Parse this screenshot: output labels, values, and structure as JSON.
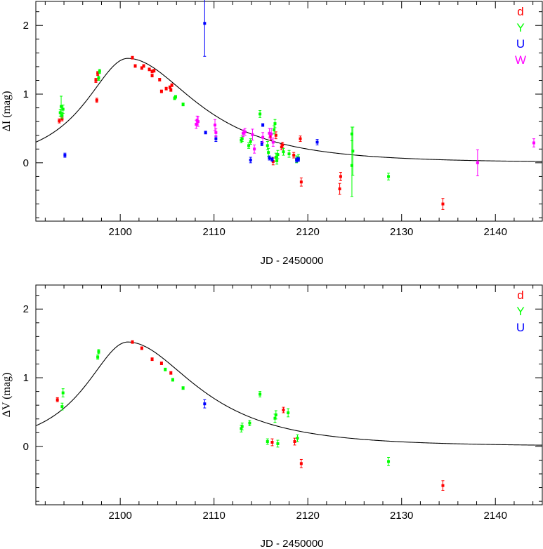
{
  "chart_data": [
    {
      "type": "scatter",
      "title": "",
      "xlabel": "JD - 2450000",
      "ylabel": "ΔI (mag)",
      "xlim": [
        2091,
        2145
      ],
      "ylim": [
        -0.85,
        2.35
      ],
      "xticks": [
        2100,
        2110,
        2120,
        2130,
        2140
      ],
      "yticks": [
        0,
        1,
        2
      ],
      "grid": false,
      "legend_position": "top-right",
      "model_curve": {
        "peak_x": 2100.8,
        "peak_y": 1.52,
        "base": 0.0,
        "u0": 0.65,
        "tE": 12.5,
        "asym_left": 1.5
      },
      "series": [
        {
          "name": "d",
          "color": "#ff0000",
          "points": [
            {
              "x": 2093.5,
              "y": 0.61,
              "err": 0.03
            },
            {
              "x": 2093.8,
              "y": 0.64,
              "err": 0.03
            },
            {
              "x": 2097.4,
              "y": 1.2,
              "err": 0.03
            },
            {
              "x": 2097.6,
              "y": 1.3,
              "err": 0.03
            },
            {
              "x": 2097.5,
              "y": 0.91,
              "err": 0.03
            },
            {
              "x": 2101.3,
              "y": 1.53,
              "err": 0.02
            },
            {
              "x": 2101.6,
              "y": 1.41,
              "err": 0.02
            },
            {
              "x": 2102.3,
              "y": 1.38,
              "err": 0.02
            },
            {
              "x": 2102.5,
              "y": 1.41,
              "err": 0.02
            },
            {
              "x": 2103.1,
              "y": 1.36,
              "err": 0.02
            },
            {
              "x": 2103.4,
              "y": 1.33,
              "err": 0.02
            },
            {
              "x": 2103.6,
              "y": 1.34,
              "err": 0.02
            },
            {
              "x": 2103.4,
              "y": 1.27,
              "err": 0.02
            },
            {
              "x": 2104.2,
              "y": 1.21,
              "err": 0.02
            },
            {
              "x": 2104.4,
              "y": 1.04,
              "err": 0.02
            },
            {
              "x": 2104.9,
              "y": 1.08,
              "err": 0.02
            },
            {
              "x": 2105.3,
              "y": 1.1,
              "err": 0.02
            },
            {
              "x": 2105.4,
              "y": 1.06,
              "err": 0.02
            },
            {
              "x": 2105.5,
              "y": 1.13,
              "err": 0.02
            },
            {
              "x": 2116.0,
              "y": 0.38,
              "err": 0.05
            },
            {
              "x": 2116.3,
              "y": 0.02,
              "err": 0.05
            },
            {
              "x": 2116.6,
              "y": 0.4,
              "err": 0.05
            },
            {
              "x": 2117.2,
              "y": 0.23,
              "err": 0.04
            },
            {
              "x": 2117.3,
              "y": 0.26,
              "err": 0.04
            },
            {
              "x": 2118.5,
              "y": 0.11,
              "err": 0.04
            },
            {
              "x": 2119.2,
              "y": 0.35,
              "err": 0.04
            },
            {
              "x": 2119.3,
              "y": -0.28,
              "err": 0.06
            },
            {
              "x": 2123.4,
              "y": -0.38,
              "err": 0.08
            },
            {
              "x": 2123.5,
              "y": -0.2,
              "err": 0.06
            },
            {
              "x": 2134.4,
              "y": -0.6,
              "err": 0.08
            }
          ]
        },
        {
          "name": "Y",
          "color": "#00ff00",
          "points": [
            {
              "x": 2093.6,
              "y": 0.73,
              "err": 0.05
            },
            {
              "x": 2093.7,
              "y": 0.82,
              "err": 0.15
            },
            {
              "x": 2093.9,
              "y": 0.78,
              "err": 0.06
            },
            {
              "x": 2093.8,
              "y": 0.69,
              "err": 0.04
            },
            {
              "x": 2097.7,
              "y": 1.23,
              "err": 0.03
            },
            {
              "x": 2097.8,
              "y": 1.33,
              "err": 0.03
            },
            {
              "x": 2105.8,
              "y": 0.94,
              "err": 0.02
            },
            {
              "x": 2105.9,
              "y": 0.96,
              "err": 0.02
            },
            {
              "x": 2106.7,
              "y": 0.85,
              "err": 0.02
            },
            {
              "x": 2112.9,
              "y": 0.33,
              "err": 0.04
            },
            {
              "x": 2113.0,
              "y": 0.35,
              "err": 0.04
            },
            {
              "x": 2113.7,
              "y": 0.25,
              "err": 0.04
            },
            {
              "x": 2113.9,
              "y": 0.31,
              "err": 0.04
            },
            {
              "x": 2114.9,
              "y": 0.71,
              "err": 0.05
            },
            {
              "x": 2115.7,
              "y": 0.25,
              "err": 0.06
            },
            {
              "x": 2115.8,
              "y": 0.15,
              "err": 0.06
            },
            {
              "x": 2116.4,
              "y": 0.48,
              "err": 0.06
            },
            {
              "x": 2116.5,
              "y": 0.57,
              "err": 0.06
            },
            {
              "x": 2116.6,
              "y": 0.08,
              "err": 0.06
            },
            {
              "x": 2116.7,
              "y": 0.03,
              "err": 0.05
            },
            {
              "x": 2116.8,
              "y": 0.12,
              "err": 0.06
            },
            {
              "x": 2117.4,
              "y": 0.16,
              "err": 0.05
            },
            {
              "x": 2118.0,
              "y": 0.13,
              "err": 0.05
            },
            {
              "x": 2118.8,
              "y": 0.05,
              "err": 0.05
            },
            {
              "x": 2119.0,
              "y": 0.07,
              "err": 0.05
            },
            {
              "x": 2124.7,
              "y": 0.42,
              "err": 0.1
            },
            {
              "x": 2124.8,
              "y": 0.17,
              "err": 0.35
            },
            {
              "x": 2124.7,
              "y": -0.04,
              "err": 0.45
            },
            {
              "x": 2128.6,
              "y": -0.2,
              "err": 0.05
            }
          ]
        },
        {
          "name": "U",
          "color": "#0000ff",
          "points": [
            {
              "x": 2094.1,
              "y": 0.11,
              "err": 0.03
            },
            {
              "x": 2109.0,
              "y": 2.03,
              "err": 0.48
            },
            {
              "x": 2109.1,
              "y": 0.44,
              "err": 0.02
            },
            {
              "x": 2110.2,
              "y": 0.35,
              "err": 0.04
            },
            {
              "x": 2113.9,
              "y": 0.04,
              "err": 0.04
            },
            {
              "x": 2115.1,
              "y": 0.28,
              "err": 0.03
            },
            {
              "x": 2115.2,
              "y": 0.55,
              "err": 0.02
            },
            {
              "x": 2115.9,
              "y": 0.07,
              "err": 0.03
            },
            {
              "x": 2116.2,
              "y": 0.05,
              "err": 0.03
            },
            {
              "x": 2118.8,
              "y": 0.04,
              "err": 0.03
            },
            {
              "x": 2119.0,
              "y": 0.05,
              "err": 0.03
            },
            {
              "x": 2121.0,
              "y": 0.3,
              "err": 0.04
            }
          ]
        },
        {
          "name": "W",
          "color": "#ff00ff",
          "points": [
            {
              "x": 2108.1,
              "y": 0.56,
              "err": 0.06
            },
            {
              "x": 2108.2,
              "y": 0.62,
              "err": 0.06
            },
            {
              "x": 2108.3,
              "y": 0.6,
              "err": 0.07
            },
            {
              "x": 2110.1,
              "y": 0.55,
              "err": 0.08
            },
            {
              "x": 2110.2,
              "y": 0.44,
              "err": 0.06
            },
            {
              "x": 2113.1,
              "y": 0.43,
              "err": 0.05
            },
            {
              "x": 2113.3,
              "y": 0.45,
              "err": 0.05
            },
            {
              "x": 2114.1,
              "y": 0.41,
              "err": 0.08
            },
            {
              "x": 2114.3,
              "y": 0.2,
              "err": 0.06
            },
            {
              "x": 2115.2,
              "y": 0.37,
              "err": 0.07
            },
            {
              "x": 2115.9,
              "y": 0.43,
              "err": 0.07
            },
            {
              "x": 2116.1,
              "y": 0.42,
              "err": 0.08
            },
            {
              "x": 2116.3,
              "y": 0.3,
              "err": 0.06
            },
            {
              "x": 2138.1,
              "y": 0.0,
              "err": 0.19
            },
            {
              "x": 2144.1,
              "y": 0.29,
              "err": 0.06
            }
          ]
        }
      ]
    },
    {
      "type": "scatter",
      "title": "",
      "xlabel": "JD - 2450000",
      "ylabel": "ΔV (mag)",
      "xlim": [
        2091,
        2145
      ],
      "ylim": [
        -0.85,
        2.35
      ],
      "xticks": [
        2100,
        2110,
        2120,
        2130,
        2140
      ],
      "yticks": [
        0,
        1,
        2
      ],
      "grid": false,
      "legend_position": "top-right",
      "model_curve": {
        "peak_x": 2100.8,
        "peak_y": 1.52,
        "base": 0.0,
        "u0": 0.65,
        "tE": 12.5,
        "asym_left": 1.5
      },
      "series": [
        {
          "name": "d",
          "color": "#ff0000",
          "points": [
            {
              "x": 2093.3,
              "y": 0.68,
              "err": 0.03
            },
            {
              "x": 2101.3,
              "y": 1.52,
              "err": 0.02
            },
            {
              "x": 2102.3,
              "y": 1.43,
              "err": 0.02
            },
            {
              "x": 2103.4,
              "y": 1.27,
              "err": 0.02
            },
            {
              "x": 2104.4,
              "y": 1.21,
              "err": 0.02
            },
            {
              "x": 2105.4,
              "y": 1.07,
              "err": 0.02
            },
            {
              "x": 2116.2,
              "y": 0.06,
              "err": 0.05
            },
            {
              "x": 2117.4,
              "y": 0.53,
              "err": 0.04
            },
            {
              "x": 2118.6,
              "y": 0.07,
              "err": 0.05
            },
            {
              "x": 2119.3,
              "y": -0.25,
              "err": 0.06
            },
            {
              "x": 2134.4,
              "y": -0.57,
              "err": 0.07
            }
          ]
        },
        {
          "name": "Y",
          "color": "#00ff00",
          "points": [
            {
              "x": 2093.8,
              "y": 0.58,
              "err": 0.05
            },
            {
              "x": 2093.9,
              "y": 0.78,
              "err": 0.06
            },
            {
              "x": 2097.6,
              "y": 1.3,
              "err": 0.03
            },
            {
              "x": 2097.7,
              "y": 1.38,
              "err": 0.03
            },
            {
              "x": 2104.8,
              "y": 1.12,
              "err": 0.02
            },
            {
              "x": 2105.6,
              "y": 0.97,
              "err": 0.02
            },
            {
              "x": 2106.7,
              "y": 0.85,
              "err": 0.02
            },
            {
              "x": 2112.9,
              "y": 0.26,
              "err": 0.05
            },
            {
              "x": 2113.0,
              "y": 0.29,
              "err": 0.05
            },
            {
              "x": 2113.8,
              "y": 0.34,
              "err": 0.04
            },
            {
              "x": 2114.9,
              "y": 0.76,
              "err": 0.04
            },
            {
              "x": 2115.7,
              "y": 0.07,
              "err": 0.04
            },
            {
              "x": 2116.5,
              "y": 0.41,
              "err": 0.06
            },
            {
              "x": 2116.6,
              "y": 0.46,
              "err": 0.06
            },
            {
              "x": 2116.8,
              "y": 0.04,
              "err": 0.05
            },
            {
              "x": 2117.9,
              "y": 0.49,
              "err": 0.06
            },
            {
              "x": 2118.9,
              "y": 0.12,
              "err": 0.05
            },
            {
              "x": 2128.6,
              "y": -0.22,
              "err": 0.06
            }
          ]
        },
        {
          "name": "U",
          "color": "#0000ff",
          "points": [
            {
              "x": 2109.0,
              "y": 0.62,
              "err": 0.06
            }
          ]
        }
      ]
    }
  ]
}
